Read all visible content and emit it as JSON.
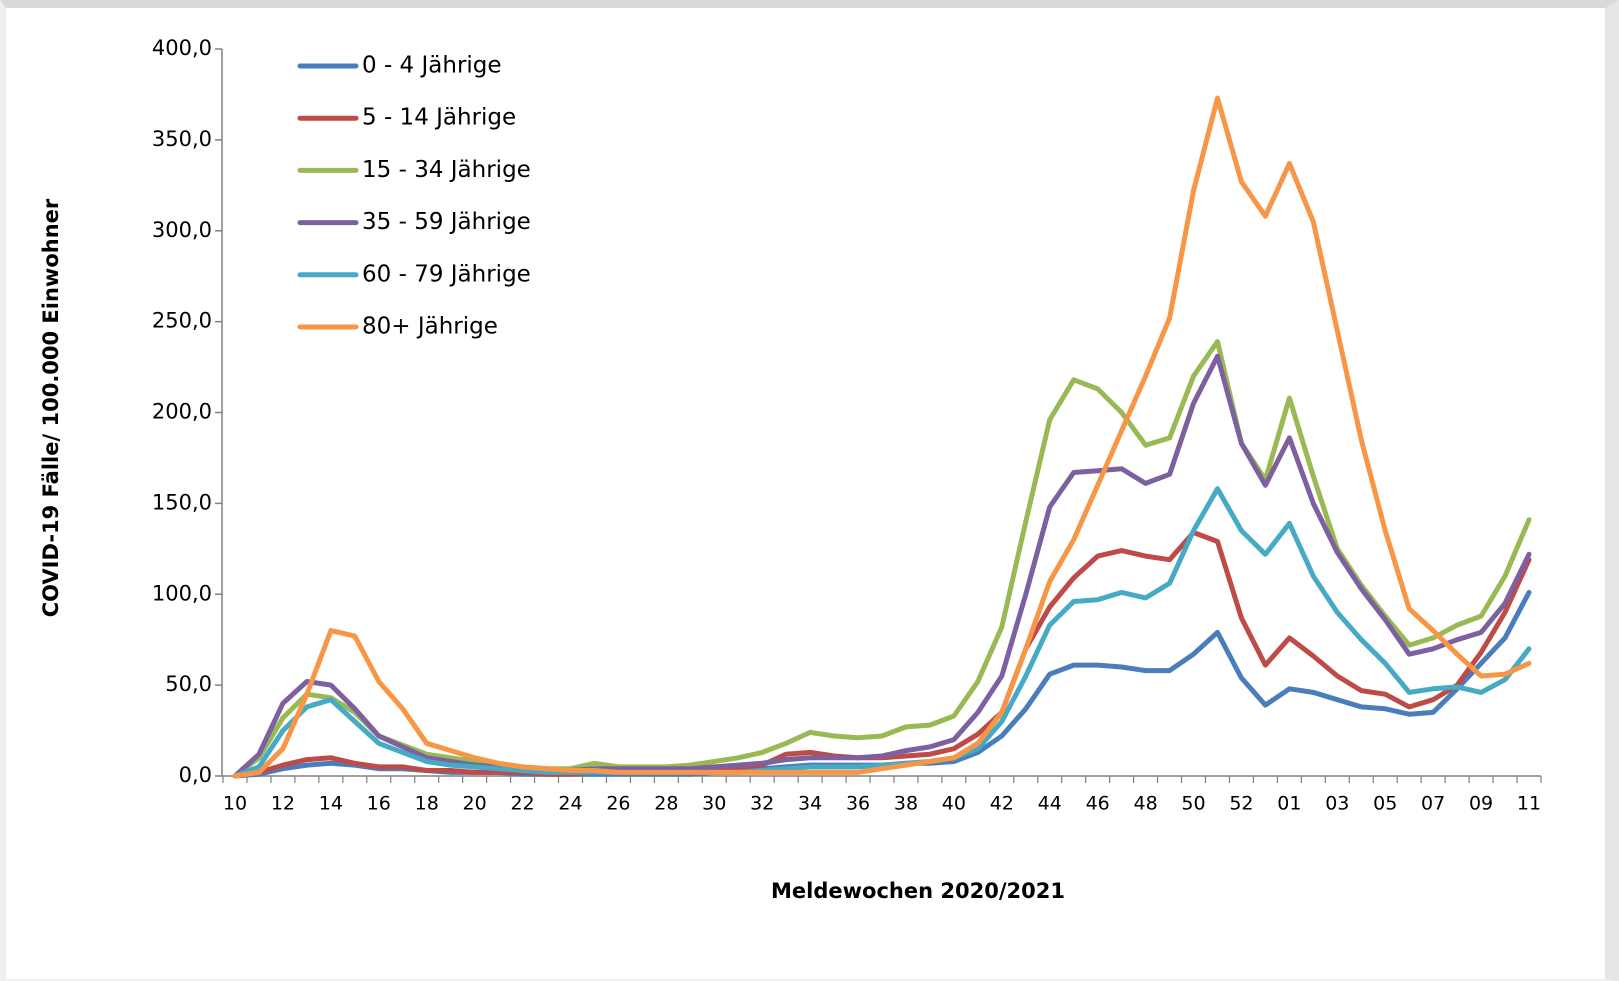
{
  "chart_data": {
    "type": "line",
    "xlabel": "Meldewochen 2020/2021",
    "ylabel": "COVID-19 Fälle/ 100.000 Einwohner",
    "categories": [
      "10",
      null,
      "12",
      null,
      "14",
      null,
      "16",
      null,
      "18",
      null,
      "20",
      null,
      "22",
      null,
      "24",
      null,
      "26",
      null,
      "28",
      null,
      "30",
      null,
      "32",
      null,
      "34",
      null,
      "36",
      null,
      "38",
      null,
      "40",
      null,
      "42",
      null,
      "44",
      null,
      "46",
      null,
      "48",
      null,
      "50",
      null,
      "52",
      null,
      "01",
      null,
      "03",
      null,
      "05",
      null,
      "07",
      null,
      "09",
      null,
      "11"
    ],
    "ylim": [
      0,
      400
    ],
    "yticks": [
      {
        "value": 0,
        "label": "0,0"
      },
      {
        "value": 50,
        "label": "50,0"
      },
      {
        "value": 100,
        "label": "100,0"
      },
      {
        "value": 150,
        "label": "150,0"
      },
      {
        "value": 200,
        "label": "200,0"
      },
      {
        "value": 250,
        "label": "250,0"
      },
      {
        "value": 300,
        "label": "300,0"
      },
      {
        "value": 350,
        "label": "350,0"
      },
      {
        "value": 400,
        "label": "400,0"
      }
    ],
    "grid": false,
    "legend": "upper left",
    "series": [
      {
        "name": "0 - 4 Jährige",
        "color": "#4a7ebb",
        "values": [
          0,
          1,
          4,
          6,
          7,
          6,
          4,
          4,
          3,
          2,
          2,
          2,
          1,
          1,
          1,
          1,
          1,
          1,
          1,
          1,
          2,
          3,
          4,
          5,
          6,
          6,
          6,
          6,
          7,
          7,
          8,
          13,
          22,
          37,
          56,
          61,
          61,
          60,
          58,
          58,
          67,
          79,
          54,
          39,
          48,
          46,
          42,
          38,
          37,
          34,
          35,
          48,
          62,
          76,
          101
        ]
      },
      {
        "name": "5 - 14 Jährige",
        "color": "#be4b48",
        "values": [
          0,
          2,
          6,
          9,
          10,
          7,
          5,
          5,
          3,
          3,
          2,
          2,
          2,
          1,
          1,
          2,
          2,
          2,
          2,
          2,
          3,
          4,
          6,
          12,
          13,
          11,
          10,
          10,
          11,
          12,
          15,
          23,
          35,
          70,
          93,
          109,
          121,
          124,
          121,
          119,
          134,
          129,
          87,
          61,
          76,
          66,
          55,
          47,
          45,
          38,
          42,
          50,
          68,
          90,
          119
        ]
      },
      {
        "name": "15 - 34 Jährige",
        "color": "#98b954",
        "values": [
          0,
          10,
          32,
          45,
          43,
          35,
          22,
          17,
          12,
          10,
          8,
          6,
          5,
          4,
          4,
          7,
          5,
          5,
          5,
          6,
          8,
          10,
          13,
          18,
          24,
          22,
          21,
          22,
          27,
          28,
          33,
          52,
          82,
          140,
          196,
          218,
          213,
          200,
          182,
          186,
          220,
          239,
          183,
          163,
          208,
          165,
          125,
          105,
          88,
          72,
          76,
          83,
          88,
          110,
          141
        ]
      },
      {
        "name": "35 - 59 Jährige",
        "color": "#7d60a0",
        "values": [
          0,
          12,
          40,
          52,
          50,
          37,
          22,
          16,
          10,
          8,
          6,
          5,
          4,
          3,
          3,
          4,
          4,
          4,
          4,
          4,
          5,
          6,
          7,
          9,
          10,
          10,
          10,
          11,
          14,
          16,
          20,
          35,
          55,
          100,
          148,
          167,
          168,
          169,
          161,
          166,
          205,
          231,
          183,
          160,
          186,
          150,
          123,
          103,
          86,
          67,
          70,
          75,
          79,
          95,
          122
        ]
      },
      {
        "name": "60 - 79 Jährige",
        "color": "#46aac5",
        "values": [
          0,
          5,
          25,
          38,
          42,
          30,
          18,
          13,
          8,
          6,
          5,
          4,
          3,
          2,
          2,
          2,
          2,
          2,
          2,
          2,
          2,
          2,
          3,
          4,
          5,
          5,
          5,
          6,
          7,
          8,
          10,
          15,
          30,
          55,
          83,
          96,
          97,
          101,
          98,
          106,
          135,
          158,
          135,
          122,
          139,
          110,
          90,
          75,
          62,
          46,
          48,
          49,
          46,
          53,
          70
        ]
      },
      {
        "name": "80+ Jährige",
        "color": "#f79646",
        "values": [
          0,
          2,
          15,
          45,
          80,
          77,
          52,
          37,
          18,
          14,
          10,
          7,
          5,
          4,
          3,
          3,
          2,
          2,
          2,
          2,
          2,
          2,
          2,
          2,
          2,
          2,
          2,
          4,
          6,
          8,
          10,
          18,
          35,
          70,
          107,
          130,
          160,
          190,
          220,
          252,
          322,
          373,
          327,
          308,
          337,
          305,
          245,
          185,
          135,
          92,
          80,
          67,
          55,
          56,
          62
        ]
      }
    ]
  }
}
